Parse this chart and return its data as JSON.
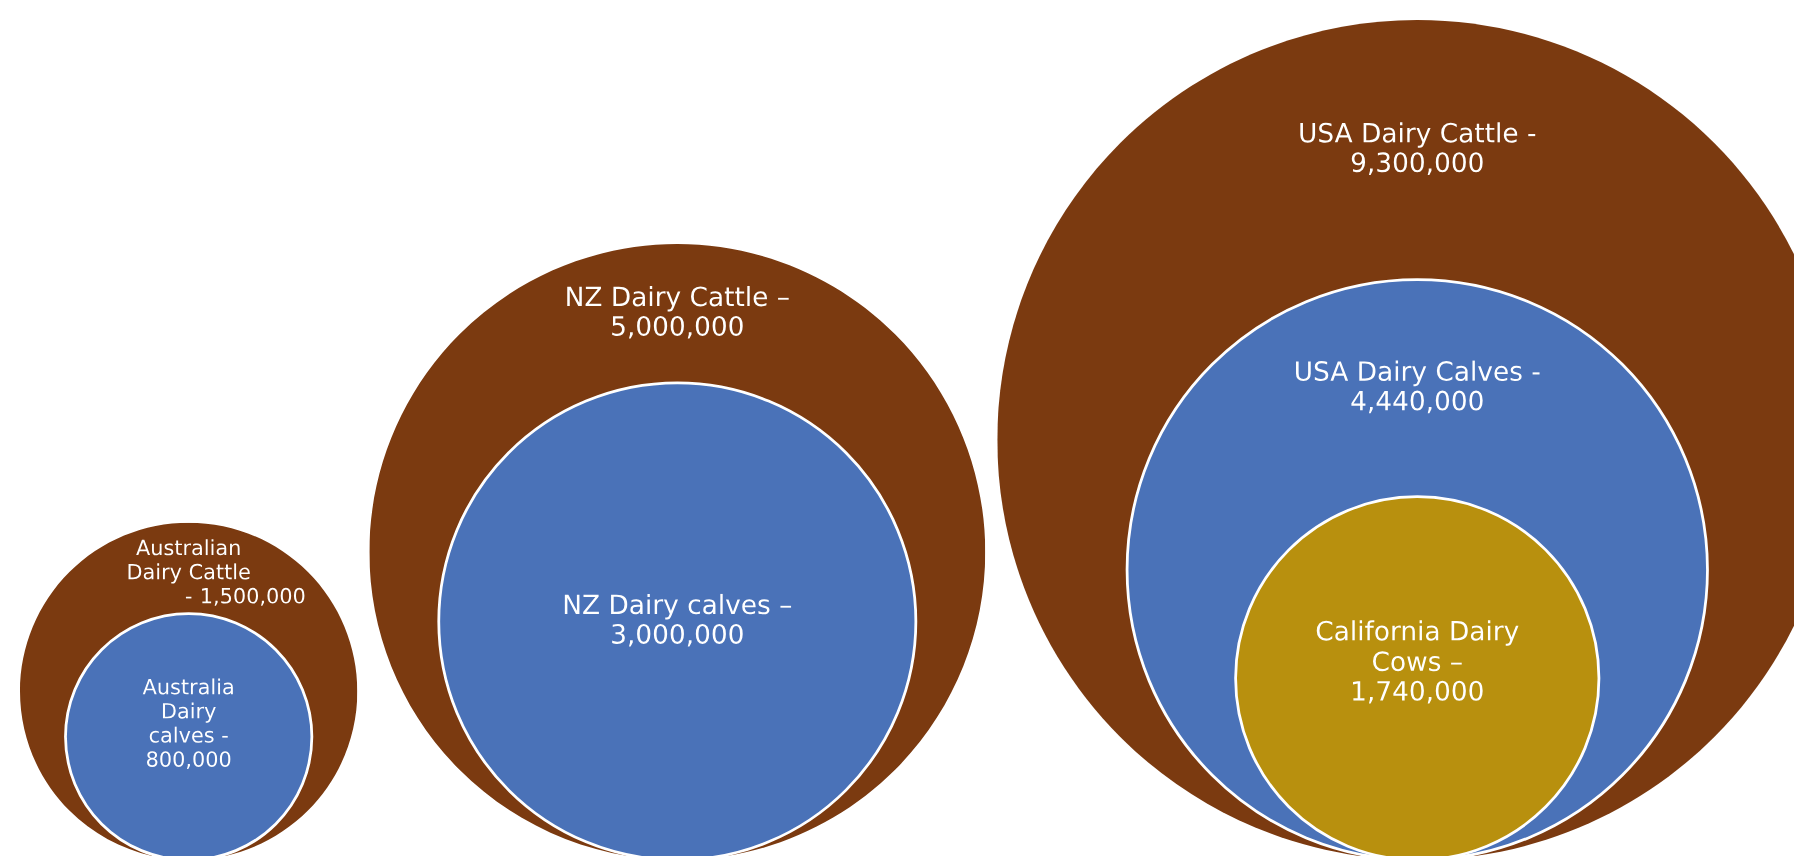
{
  "chart_data": [
    {
      "type": "other",
      "categories": [
        "Australian\nDairy Cattle\n-",
        "Australia\nDairy\ncalves -"
      ],
      "values": [
        1500000,
        800000
      ],
      "value_labels": [
        "1,500,000",
        "800,000"
      ],
      "colors": [
        "#7b3a10",
        "#4a72b8"
      ]
    },
    {
      "type": "other",
      "categories": [
        "NZ Dairy Cattle –",
        "NZ Dairy calves –"
      ],
      "values": [
        5000000,
        3000000
      ],
      "value_labels": [
        "5,000,000",
        "3,000,000"
      ],
      "colors": [
        "#7b3a10",
        "#4a72b8"
      ]
    },
    {
      "type": "other",
      "categories": [
        "USA Dairy Cattle -",
        "USA Dairy Calves -",
        "California Dairy\nCows –"
      ],
      "values": [
        9300000,
        4440000,
        1740000
      ],
      "value_labels": [
        "9,300,000",
        "4,440,000",
        "1,740,000"
      ],
      "colors": [
        "#7b3a10",
        "#4a72b8",
        "#b8900e"
      ]
    }
  ]
}
